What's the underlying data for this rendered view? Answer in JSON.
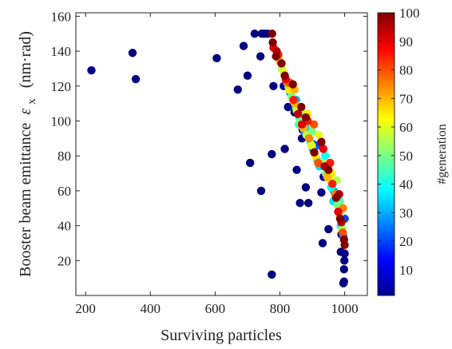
{
  "chart_data": {
    "type": "scatter",
    "xlabel": "Surviving particles",
    "ylabel": "Booster beam emittance",
    "ylabel_symbol": "ε",
    "ylabel_subscript": "x",
    "ylabel_unit": "(nm·rad)",
    "xlim": [
      170,
      1070
    ],
    "ylim": [
      0,
      162
    ],
    "x_ticks": [
      200,
      400,
      600,
      800,
      1000
    ],
    "y_ticks": [
      20,
      40,
      60,
      80,
      100,
      120,
      140,
      160
    ],
    "grid": false,
    "colorbar": {
      "label": "#generation",
      "range": [
        1,
        100
      ],
      "ticks": [
        10,
        20,
        30,
        40,
        50,
        60,
        70,
        80,
        90,
        100
      ],
      "colormap": "jet"
    },
    "points": [
      [
        218,
        129,
        1
      ],
      [
        345,
        139,
        1
      ],
      [
        355,
        124,
        1
      ],
      [
        605,
        136,
        1
      ],
      [
        670,
        118,
        1
      ],
      [
        688,
        143,
        1
      ],
      [
        700,
        126,
        1
      ],
      [
        708,
        76,
        1
      ],
      [
        722,
        150,
        1
      ],
      [
        740,
        137,
        1
      ],
      [
        744,
        150,
        1
      ],
      [
        742,
        60,
        1
      ],
      [
        752,
        150,
        1
      ],
      [
        762,
        150,
        1
      ],
      [
        775,
        81,
        1
      ],
      [
        780,
        120,
        1
      ],
      [
        815,
        84,
        1
      ],
      [
        852,
        72,
        1
      ],
      [
        862,
        53,
        1
      ],
      [
        868,
        90,
        1
      ],
      [
        880,
        62,
        1
      ],
      [
        888,
        53,
        1
      ],
      [
        928,
        59,
        1
      ],
      [
        932,
        30,
        1
      ],
      [
        950,
        38,
        1
      ],
      [
        775,
        12,
        1
      ],
      [
        988,
        25,
        1
      ],
      [
        996,
        7,
        1
      ],
      [
        998,
        8,
        1
      ],
      [
        998,
        15,
        1
      ],
      [
        999,
        20,
        1
      ],
      [
        1000,
        24,
        1
      ],
      [
        812,
        120,
        2
      ],
      [
        825,
        108,
        2
      ],
      [
        845,
        105,
        2
      ],
      [
        870,
        95,
        3
      ],
      [
        900,
        87,
        3
      ],
      [
        935,
        68,
        3
      ],
      [
        990,
        35,
        4
      ],
      [
        776,
        150,
        100
      ],
      [
        778,
        145,
        100
      ],
      [
        780,
        142,
        90
      ],
      [
        788,
        137,
        100
      ],
      [
        790,
        140,
        95
      ],
      [
        795,
        138,
        85
      ],
      [
        800,
        134,
        70
      ],
      [
        805,
        133,
        100
      ],
      [
        806,
        130,
        55
      ],
      [
        812,
        128,
        60
      ],
      [
        815,
        126,
        100
      ],
      [
        818,
        124,
        90
      ],
      [
        822,
        122,
        75
      ],
      [
        826,
        120,
        45
      ],
      [
        828,
        118,
        65
      ],
      [
        832,
        116,
        30
      ],
      [
        836,
        114,
        50
      ],
      [
        840,
        121,
        100
      ],
      [
        842,
        112,
        85
      ],
      [
        846,
        110,
        70
      ],
      [
        850,
        108,
        40
      ],
      [
        852,
        106,
        60
      ],
      [
        856,
        104,
        95
      ],
      [
        860,
        102,
        35
      ],
      [
        862,
        100,
        50
      ],
      [
        866,
        108,
        100
      ],
      [
        868,
        98,
        90
      ],
      [
        872,
        96,
        70
      ],
      [
        876,
        94,
        25
      ],
      [
        880,
        102,
        100
      ],
      [
        882,
        92,
        55
      ],
      [
        886,
        100,
        85
      ],
      [
        890,
        90,
        75
      ],
      [
        894,
        88,
        40
      ],
      [
        898,
        86,
        60
      ],
      [
        902,
        84,
        30
      ],
      [
        906,
        82,
        100
      ],
      [
        910,
        80,
        65
      ],
      [
        914,
        78,
        45
      ],
      [
        918,
        76,
        80
      ],
      [
        922,
        74,
        35
      ],
      [
        928,
        88,
        100
      ],
      [
        934,
        84,
        90
      ],
      [
        938,
        74,
        95
      ],
      [
        942,
        70,
        50
      ],
      [
        946,
        68,
        70
      ],
      [
        950,
        72,
        100
      ],
      [
        954,
        66,
        60
      ],
      [
        958,
        62,
        40
      ],
      [
        962,
        64,
        85
      ],
      [
        966,
        60,
        30
      ],
      [
        970,
        58,
        75
      ],
      [
        974,
        56,
        100
      ],
      [
        978,
        52,
        50
      ],
      [
        980,
        48,
        90
      ],
      [
        984,
        46,
        65
      ],
      [
        986,
        44,
        100
      ],
      [
        988,
        40,
        35
      ],
      [
        990,
        42,
        95
      ],
      [
        992,
        38,
        55
      ],
      [
        994,
        36,
        80
      ],
      [
        996,
        34,
        25
      ],
      [
        998,
        32,
        100
      ],
      [
        1000,
        29,
        100
      ],
      [
        1000,
        44,
        20
      ],
      [
        850,
        112,
        30
      ],
      [
        858,
        98,
        45
      ],
      [
        880,
        96,
        35
      ],
      [
        900,
        94,
        50
      ],
      [
        920,
        92,
        60
      ],
      [
        940,
        80,
        40
      ],
      [
        960,
        70,
        65
      ],
      [
        975,
        66,
        55
      ],
      [
        985,
        54,
        45
      ],
      [
        995,
        50,
        75
      ],
      [
        830,
        122,
        80
      ],
      [
        845,
        118,
        70
      ],
      [
        865,
        106,
        55
      ],
      [
        885,
        104,
        65
      ],
      [
        905,
        98,
        80
      ],
      [
        915,
        86,
        20
      ],
      [
        930,
        76,
        55
      ],
      [
        955,
        76,
        85
      ],
      [
        965,
        54,
        35
      ],
      [
        983,
        58,
        95
      ]
    ]
  }
}
